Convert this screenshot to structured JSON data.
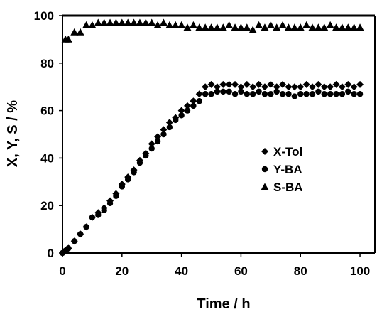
{
  "chart_data": {
    "type": "scatter",
    "xlabel": "Time / h",
    "ylabel": "X, Y, S / %",
    "xlim": [
      0,
      105
    ],
    "ylim": [
      0,
      100
    ],
    "xticks": [
      "0",
      "20",
      "40",
      "60",
      "80",
      "100"
    ],
    "yticks": [
      "0",
      "20",
      "40",
      "60",
      "80",
      "100"
    ],
    "grid": false,
    "legend": "center-right",
    "series": [
      {
        "name": "X-Tol",
        "marker": "diamond",
        "color": "#000000",
        "x": [
          0,
          1,
          2,
          4,
          6,
          8,
          10,
          12,
          14,
          16,
          18,
          20,
          22,
          24,
          26,
          28,
          30,
          32,
          34,
          36,
          38,
          40,
          42,
          44,
          46,
          48,
          50,
          52,
          54,
          56,
          58,
          60,
          62,
          64,
          66,
          68,
          70,
          72,
          74,
          76,
          78,
          80,
          82,
          84,
          86,
          88,
          90,
          92,
          94,
          96,
          98,
          100
        ],
        "y": [
          0,
          1,
          2,
          5,
          8,
          11,
          15,
          17,
          19,
          22,
          25,
          29,
          32,
          35,
          39,
          42,
          46,
          49,
          52,
          55,
          57,
          60,
          62,
          64,
          67,
          70,
          71,
          70,
          71,
          71,
          71,
          70,
          71,
          70,
          71,
          70,
          71,
          70,
          71,
          70,
          70,
          70,
          71,
          70,
          71,
          70,
          70,
          71,
          70,
          71,
          70,
          71
        ]
      },
      {
        "name": "Y-BA",
        "marker": "circle",
        "color": "#000000",
        "x": [
          0,
          1,
          2,
          4,
          6,
          8,
          10,
          12,
          14,
          16,
          18,
          20,
          22,
          24,
          26,
          28,
          30,
          32,
          34,
          36,
          38,
          40,
          42,
          44,
          46,
          48,
          50,
          52,
          54,
          56,
          58,
          60,
          62,
          64,
          66,
          68,
          70,
          72,
          74,
          76,
          78,
          80,
          82,
          84,
          86,
          88,
          90,
          92,
          94,
          96,
          98,
          100
        ],
        "y": [
          0,
          1,
          2,
          5,
          8,
          11,
          15,
          16,
          18,
          21,
          24,
          28,
          31,
          34,
          38,
          41,
          44,
          47,
          50,
          53,
          56,
          58,
          60,
          62,
          64,
          67,
          67,
          68,
          68,
          68,
          67,
          68,
          67,
          67,
          68,
          67,
          67,
          68,
          67,
          67,
          66,
          67,
          67,
          67,
          68,
          67,
          67,
          67,
          67,
          68,
          67,
          67
        ]
      },
      {
        "name": "S-BA",
        "marker": "triangle",
        "color": "#000000",
        "x": [
          1,
          2,
          4,
          6,
          8,
          10,
          12,
          14,
          16,
          18,
          20,
          22,
          24,
          26,
          28,
          30,
          32,
          34,
          36,
          38,
          40,
          42,
          44,
          46,
          48,
          50,
          52,
          54,
          56,
          58,
          60,
          62,
          64,
          66,
          68,
          70,
          72,
          74,
          76,
          78,
          80,
          82,
          84,
          86,
          88,
          90,
          92,
          94,
          96,
          98,
          100
        ],
        "y": [
          90,
          90,
          93,
          93,
          96,
          96,
          97,
          97,
          97,
          97,
          97,
          97,
          97,
          97,
          97,
          97,
          96,
          97,
          96,
          96,
          96,
          95,
          96,
          95,
          95,
          95,
          95,
          95,
          96,
          95,
          95,
          95,
          94,
          96,
          95,
          96,
          95,
          96,
          95,
          95,
          95,
          96,
          95,
          95,
          95,
          96,
          95,
          95,
          95,
          95,
          95
        ]
      }
    ]
  }
}
